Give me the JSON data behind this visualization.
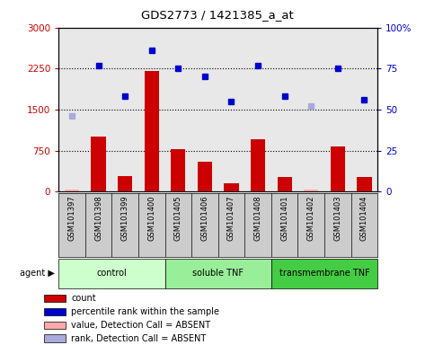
{
  "title": "GDS2773 / 1421385_a_at",
  "samples": [
    "GSM101397",
    "GSM101398",
    "GSM101399",
    "GSM101400",
    "GSM101405",
    "GSM101406",
    "GSM101407",
    "GSM101408",
    "GSM101401",
    "GSM101402",
    "GSM101403",
    "GSM101404"
  ],
  "groups": [
    {
      "label": "control",
      "start": 0,
      "end": 4,
      "color": "#ccffcc"
    },
    {
      "label": "soluble TNF",
      "start": 4,
      "end": 8,
      "color": "#99ee99"
    },
    {
      "label": "transmembrane TNF",
      "start": 8,
      "end": 12,
      "color": "#44cc44"
    }
  ],
  "count_values": [
    30,
    1000,
    280,
    2200,
    780,
    550,
    155,
    950,
    265,
    30,
    820,
    265
  ],
  "count_absent": [
    true,
    false,
    false,
    false,
    false,
    false,
    false,
    false,
    false,
    true,
    false,
    false
  ],
  "rank_values": [
    46,
    77,
    58,
    86,
    75,
    70,
    55,
    77,
    58,
    52,
    75,
    56
  ],
  "rank_absent": [
    true,
    false,
    false,
    false,
    false,
    false,
    false,
    false,
    false,
    true,
    false,
    false
  ],
  "ylim_left": [
    0,
    3000
  ],
  "ylim_right": [
    0,
    100
  ],
  "yticks_left": [
    0,
    750,
    1500,
    2250,
    3000
  ],
  "yticks_right": [
    0,
    25,
    50,
    75,
    100
  ],
  "yticklabels_left": [
    "0",
    "750",
    "1500",
    "2250",
    "3000"
  ],
  "yticklabels_right": [
    "0",
    "25",
    "50",
    "75",
    "100%"
  ],
  "bar_color_normal": "#cc0000",
  "bar_color_absent": "#ffaaaa",
  "dot_color_normal": "#0000cc",
  "dot_color_absent": "#aaaadd",
  "plot_bg": "#e8e8e8",
  "left_label_color": "#cc0000",
  "right_label_color": "#0000cc",
  "grid_yticks": [
    750,
    1500,
    2250
  ],
  "legend_entries": [
    {
      "color": "#cc0000",
      "label": "count"
    },
    {
      "color": "#0000cc",
      "label": "percentile rank within the sample"
    },
    {
      "color": "#ffaaaa",
      "label": "value, Detection Call = ABSENT"
    },
    {
      "color": "#aaaadd",
      "label": "rank, Detection Call = ABSENT"
    }
  ]
}
